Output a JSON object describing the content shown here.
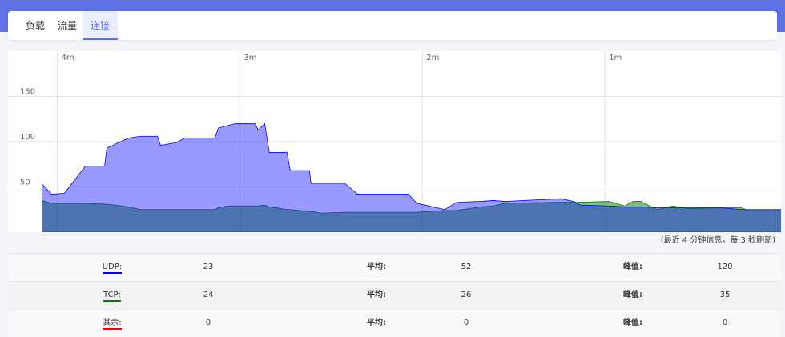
{
  "tabs": [
    "负载",
    "流量",
    "连接"
  ],
  "chart_data": {
    "type": "area",
    "x": [
      4.083,
      4.031,
      3.961,
      3.846,
      3.741,
      3.728,
      3.61,
      3.544,
      3.452,
      3.434,
      3.346,
      3.303,
      3.136,
      3.118,
      3.061,
      3.022,
      2.917,
      2.899,
      2.864,
      2.838,
      2.741,
      2.724,
      2.618,
      2.61,
      2.557,
      2.425,
      2.355,
      2.075,
      2.031,
      1.877,
      1.811,
      1.68,
      1.61,
      1.548,
      1.241,
      1.171,
      1.136,
      0.978,
      0.89,
      0.846,
      0.803,
      0.715,
      0.627,
      0.539,
      0.364,
      0.254,
      0.211,
      0.035
    ],
    "xlim": [
      4.27,
      0.035
    ],
    "xticks": [
      {
        "value": 4,
        "label": "4m"
      },
      {
        "value": 3,
        "label": "3m"
      },
      {
        "value": 2,
        "label": "2m"
      },
      {
        "value": 1,
        "label": "1m"
      }
    ],
    "ylim": [
      0,
      200
    ],
    "yticks": [
      50,
      100,
      150
    ],
    "grid": true,
    "series": [
      {
        "name": "UDP:",
        "color": "#0000ff",
        "values": [
          53,
          42,
          43,
          73,
          73,
          93,
          104,
          106,
          106,
          96,
          99,
          104,
          104,
          115,
          118,
          120,
          120,
          113,
          120,
          88,
          88,
          68,
          68,
          54,
          54,
          54,
          42,
          42,
          32,
          25,
          33,
          34,
          35,
          34,
          37,
          34,
          30,
          29,
          28,
          28,
          28,
          27,
          27,
          27,
          27,
          25,
          25,
          25
        ]
      },
      {
        "name": "TCP:",
        "color": "#008000",
        "values": [
          35,
          32,
          32,
          32,
          31,
          31,
          28,
          25,
          25,
          25,
          25,
          25,
          25,
          27,
          29,
          29,
          29,
          29,
          30,
          28,
          25,
          25,
          23,
          23,
          21,
          22,
          22,
          22,
          22,
          24,
          24,
          28,
          29,
          32,
          33,
          33,
          33,
          34,
          29,
          34,
          34,
          25,
          29,
          26,
          27,
          27,
          24,
          24
        ]
      },
      {
        "name": "其余:",
        "color": "#ff0000",
        "values": [
          0,
          0,
          0,
          0,
          0,
          0,
          0,
          0,
          0,
          0,
          0,
          0,
          0,
          0,
          0,
          0,
          0,
          0,
          0,
          0,
          0,
          0,
          0,
          0,
          0,
          0,
          0,
          0,
          0,
          0,
          0,
          0,
          0,
          0,
          0,
          0,
          0,
          0,
          0,
          0,
          0,
          0,
          0,
          0,
          0,
          0,
          0,
          0
        ]
      }
    ],
    "note": "(最近 4 分钟信息，每 3 秒刷新)"
  },
  "table": {
    "rows": [
      [
        23,
        "平均:",
        52,
        "峰值:",
        120
      ],
      [
        24,
        "平均:",
        26,
        "峰值:",
        35
      ],
      [
        0,
        "平均:",
        0,
        "峰值:",
        0
      ]
    ]
  }
}
